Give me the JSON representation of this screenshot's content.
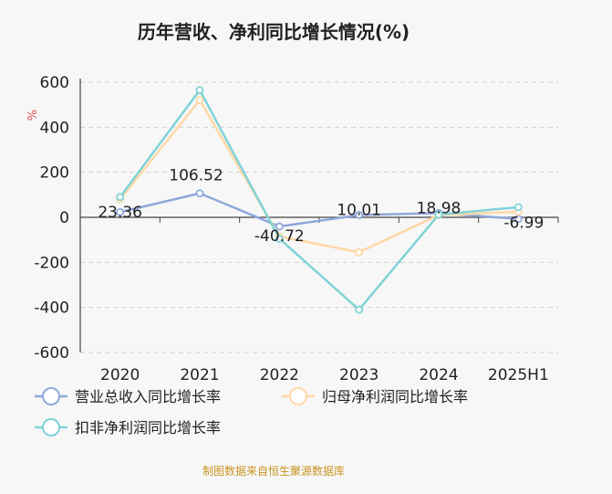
{
  "chart_data": {
    "type": "line",
    "title": "历年营收、净利同比增长情况(%)",
    "ylabel": "%",
    "xlabel": "",
    "categories": [
      "2020",
      "2021",
      "2022",
      "2023",
      "2024",
      "2025H1"
    ],
    "ylim": [
      -600,
      600
    ],
    "yticks": [
      -600,
      -400,
      -200,
      0,
      200,
      400,
      600
    ],
    "grid": true,
    "legend_position": "bottom",
    "series": [
      {
        "name": "营业总收入同比增长率",
        "color": "#8fa8dc",
        "values": [
          23.36,
          106.52,
          -40.72,
          10.01,
          18.98,
          -6.99
        ],
        "show_labels": true
      },
      {
        "name": "归母净利润同比增长率",
        "color": "#ffd8a6",
        "values": [
          80,
          520,
          -85,
          -155,
          10,
          25
        ],
        "show_labels": false
      },
      {
        "name": "扣非净利润同比增长率",
        "color": "#7fd3d6",
        "values": [
          90,
          565,
          -95,
          -410,
          12,
          45
        ],
        "show_labels": false
      }
    ],
    "data_labels": [
      "23.36",
      "106.52",
      "-40.72",
      "10.01",
      "18.98",
      "-6.99"
    ]
  },
  "source": "制图数据来自恒生聚源数据库"
}
